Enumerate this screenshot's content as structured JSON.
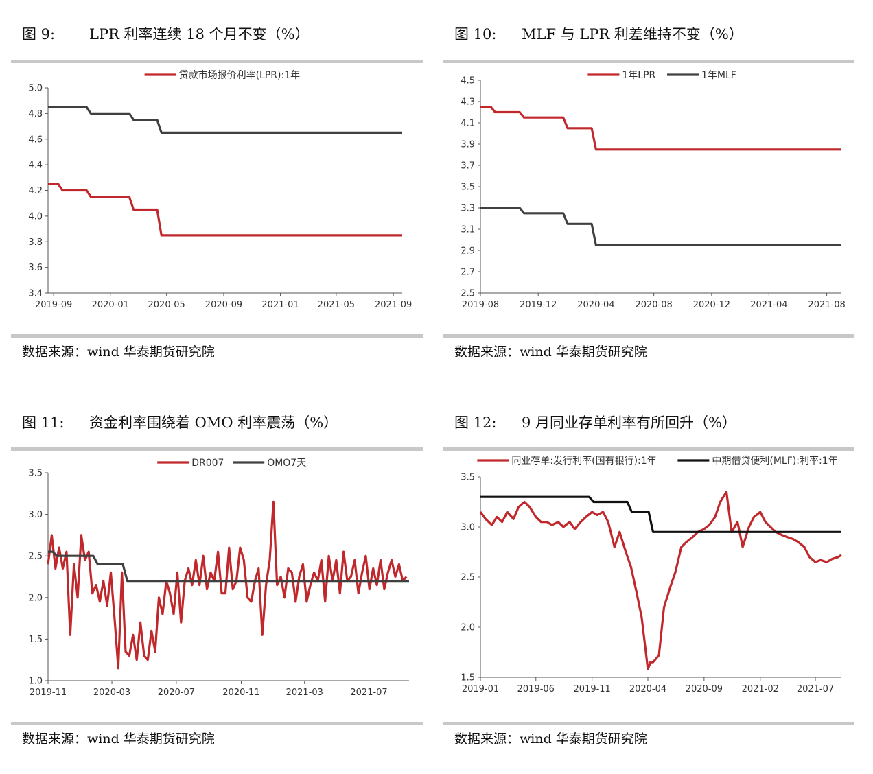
{
  "panels": [
    {
      "fig_num": "图 9:",
      "title": "LPR 利率连续 18 个月不变（%）",
      "source": "数据来源：wind  华泰期货研究院"
    },
    {
      "fig_num": "图 10:",
      "title": "MLF 与 LPR 利差维持不变（%）",
      "source": "数据来源：wind  华泰期货研究院"
    },
    {
      "fig_num": "图 11:",
      "title": "资金利率围绕着 OMO 利率震荡（%）",
      "source": "数据来源：wind  华泰期货研究院"
    },
    {
      "fig_num": "图 12:",
      "title": "9 月同业存单利率有所回升（%）",
      "source": "数据来源：wind  华泰期货研究院"
    }
  ],
  "chart_data": [
    {
      "type": "line",
      "title": "",
      "ylim": [
        3.4,
        5.0
      ],
      "yticks": [
        "3.4",
        "3.6",
        "3.8",
        "4.0",
        "4.2",
        "4.4",
        "4.6",
        "4.8",
        "5.0"
      ],
      "ytick_values": [
        3.4,
        3.6,
        3.8,
        4.0,
        4.2,
        4.4,
        4.6,
        4.8,
        5.0
      ],
      "xlim": [
        "2019-08-20",
        "2021-09-20"
      ],
      "xticks": [
        "2019-09",
        "2020-01",
        "2020-05",
        "2020-09",
        "2021-01",
        "2021-05",
        "2021-09"
      ],
      "xtick_dates": [
        "2019-09-01",
        "2020-01-01",
        "2020-05-01",
        "2020-09-01",
        "2021-01-01",
        "2021-05-01",
        "2021-09-01"
      ],
      "legend_position": "top-center",
      "series": [
        {
          "name": "贷款市场报价利率(LPR):1年",
          "color": "#c0282b",
          "step": true,
          "x": [
            "2019-08-20",
            "2019-09-20",
            "2019-10-21",
            "2019-11-20",
            "2019-12-20",
            "2020-01-20",
            "2020-02-20",
            "2020-03-20",
            "2020-04-20",
            "2021-09-20"
          ],
          "y": [
            4.25,
            4.2,
            4.2,
            4.15,
            4.15,
            4.15,
            4.05,
            4.05,
            3.85,
            3.85
          ]
        },
        {
          "name": "",
          "color": "#404040",
          "step": true,
          "x": [
            "2019-08-20",
            "2019-09-20",
            "2019-10-21",
            "2019-11-20",
            "2019-12-20",
            "2020-01-20",
            "2020-02-20",
            "2020-03-20",
            "2020-04-20",
            "2021-09-20"
          ],
          "y": [
            4.85,
            4.85,
            4.85,
            4.8,
            4.8,
            4.8,
            4.75,
            4.75,
            4.65,
            4.65
          ]
        }
      ]
    },
    {
      "type": "line",
      "title": "",
      "ylim": [
        2.5,
        4.5
      ],
      "yticks": [
        "2.5",
        "2.7",
        "2.9",
        "3.1",
        "3.3",
        "3.5",
        "3.7",
        "3.9",
        "4.1",
        "4.3",
        "4.5"
      ],
      "ytick_values": [
        2.5,
        2.7,
        2.9,
        3.1,
        3.3,
        3.5,
        3.7,
        3.9,
        4.1,
        4.3,
        4.5
      ],
      "xlim": [
        "2019-08-01",
        "2021-09-01"
      ],
      "xticks": [
        "2019-08",
        "2019-12",
        "2020-04",
        "2020-08",
        "2020-12",
        "2021-04",
        "2021-08"
      ],
      "xtick_dates": [
        "2019-08-01",
        "2019-12-01",
        "2020-04-01",
        "2020-08-01",
        "2020-12-01",
        "2021-04-01",
        "2021-08-01"
      ],
      "legend_position": "top-center",
      "series": [
        {
          "name": "1年LPR",
          "color": "#c0282b",
          "step": true,
          "x": [
            "2019-08-01",
            "2019-09-01",
            "2019-10-01",
            "2019-11-01",
            "2019-12-01",
            "2020-01-01",
            "2020-02-01",
            "2020-03-01",
            "2020-04-01",
            "2021-09-01"
          ],
          "y": [
            4.25,
            4.2,
            4.2,
            4.15,
            4.15,
            4.15,
            4.05,
            4.05,
            3.85,
            3.85
          ]
        },
        {
          "name": "1年MLF",
          "color": "#404040",
          "step": true,
          "x": [
            "2019-08-01",
            "2019-09-01",
            "2019-10-01",
            "2019-11-01",
            "2019-12-01",
            "2020-01-01",
            "2020-02-01",
            "2020-03-01",
            "2020-04-01",
            "2021-09-01"
          ],
          "y": [
            3.3,
            3.3,
            3.3,
            3.25,
            3.25,
            3.25,
            3.15,
            3.15,
            2.95,
            2.95
          ]
        }
      ]
    },
    {
      "type": "line",
      "title": "",
      "ylim": [
        1.0,
        3.5
      ],
      "yticks": [
        "1.0",
        "1.5",
        "2.0",
        "2.5",
        "3.0",
        "3.5"
      ],
      "ytick_values": [
        1.0,
        1.5,
        2.0,
        2.5,
        3.0,
        3.5
      ],
      "xlim": [
        "2019-11-01",
        "2021-09-15"
      ],
      "xticks": [
        "2019-11",
        "2020-03",
        "2020-07",
        "2020-11",
        "2021-03",
        "2021-07"
      ],
      "xtick_dates": [
        "2019-11-01",
        "2020-03-01",
        "2020-07-01",
        "2020-11-01",
        "2021-03-01",
        "2021-07-01"
      ],
      "legend_position": "top-center",
      "series": [
        {
          "name": "DR007",
          "color": "#c0282b",
          "step": false,
          "x": [
            "2019-11-01",
            "2019-11-08",
            "2019-11-15",
            "2019-11-22",
            "2019-11-29",
            "2019-12-06",
            "2019-12-13",
            "2019-12-20",
            "2019-12-27",
            "2020-01-03",
            "2020-01-10",
            "2020-01-17",
            "2020-01-24",
            "2020-01-31",
            "2020-02-07",
            "2020-02-14",
            "2020-02-21",
            "2020-02-28",
            "2020-03-06",
            "2020-03-13",
            "2020-03-20",
            "2020-03-27",
            "2020-04-03",
            "2020-04-10",
            "2020-04-17",
            "2020-04-24",
            "2020-05-01",
            "2020-05-08",
            "2020-05-15",
            "2020-05-22",
            "2020-05-29",
            "2020-06-05",
            "2020-06-12",
            "2020-06-19",
            "2020-06-26",
            "2020-07-03",
            "2020-07-10",
            "2020-07-17",
            "2020-07-24",
            "2020-07-31",
            "2020-08-07",
            "2020-08-14",
            "2020-08-21",
            "2020-08-28",
            "2020-09-04",
            "2020-09-11",
            "2020-09-18",
            "2020-09-25",
            "2020-10-02",
            "2020-10-09",
            "2020-10-16",
            "2020-10-23",
            "2020-10-30",
            "2020-11-06",
            "2020-11-13",
            "2020-11-20",
            "2020-11-27",
            "2020-12-04",
            "2020-12-11",
            "2020-12-18",
            "2020-12-25",
            "2021-01-01",
            "2021-01-08",
            "2021-01-15",
            "2021-01-22",
            "2021-01-29",
            "2021-02-05",
            "2021-02-12",
            "2021-02-19",
            "2021-02-26",
            "2021-03-05",
            "2021-03-12",
            "2021-03-19",
            "2021-03-26",
            "2021-04-02",
            "2021-04-09",
            "2021-04-16",
            "2021-04-23",
            "2021-04-30",
            "2021-05-07",
            "2021-05-14",
            "2021-05-21",
            "2021-05-28",
            "2021-06-04",
            "2021-06-11",
            "2021-06-18",
            "2021-06-25",
            "2021-07-02",
            "2021-07-09",
            "2021-07-16",
            "2021-07-23",
            "2021-07-30",
            "2021-08-06",
            "2021-08-13",
            "2021-08-20",
            "2021-08-27",
            "2021-09-03",
            "2021-09-10"
          ],
          "y": [
            2.4,
            2.75,
            2.35,
            2.6,
            2.35,
            2.55,
            1.55,
            2.4,
            2.0,
            2.75,
            2.45,
            2.55,
            2.05,
            2.15,
            1.95,
            2.2,
            1.9,
            2.3,
            1.75,
            1.15,
            2.3,
            1.35,
            1.3,
            1.55,
            1.25,
            1.7,
            1.3,
            1.25,
            1.6,
            1.35,
            2.0,
            1.8,
            2.2,
            2.05,
            1.8,
            2.3,
            1.7,
            2.2,
            2.35,
            2.15,
            2.45,
            2.15,
            2.5,
            2.1,
            2.3,
            2.2,
            2.55,
            2.05,
            2.05,
            2.6,
            2.1,
            2.2,
            2.6,
            2.45,
            2.0,
            1.95,
            2.2,
            2.35,
            1.55,
            2.15,
            2.45,
            3.15,
            2.15,
            2.25,
            2.0,
            2.35,
            2.3,
            1.95,
            2.25,
            2.4,
            1.95,
            2.15,
            2.3,
            2.2,
            2.45,
            1.95,
            2.5,
            2.2,
            2.45,
            2.05,
            2.55,
            2.2,
            2.25,
            2.45,
            2.05,
            2.3,
            2.5,
            2.1,
            2.35,
            2.15,
            2.45,
            2.1,
            2.3,
            2.45,
            2.25,
            2.4,
            2.2,
            2.25
          ]
        },
        {
          "name": "OMO7天",
          "color": "#404040",
          "step": true,
          "x": [
            "2019-11-01",
            "2019-11-18",
            "2020-02-03",
            "2020-03-30",
            "2021-09-15"
          ],
          "y": [
            2.55,
            2.5,
            2.4,
            2.2,
            2.2
          ]
        }
      ]
    },
    {
      "type": "line",
      "title": "",
      "ylim": [
        1.5,
        3.5
      ],
      "yticks": [
        "1.5",
        "2.0",
        "2.5",
        "3.0",
        "3.5"
      ],
      "ytick_values": [
        1.5,
        2.0,
        2.5,
        3.0,
        3.5
      ],
      "xlim": [
        "2019-01-01",
        "2021-09-10"
      ],
      "xticks": [
        "2019-01",
        "2019-06",
        "2019-11",
        "2020-04",
        "2020-09",
        "2021-02",
        "2021-07"
      ],
      "xtick_dates": [
        "2019-01-01",
        "2019-06-01",
        "2019-11-01",
        "2020-04-01",
        "2020-09-01",
        "2021-02-01",
        "2021-07-01"
      ],
      "legend_position": "top-center",
      "series": [
        {
          "name": "同业存单:发行利率(国有银行):1年",
          "color": "#c0282b",
          "step": false,
          "x": [
            "2019-01-01",
            "2019-01-15",
            "2019-02-01",
            "2019-02-15",
            "2019-03-01",
            "2019-03-15",
            "2019-04-01",
            "2019-04-15",
            "2019-05-01",
            "2019-05-15",
            "2019-06-01",
            "2019-06-15",
            "2019-07-01",
            "2019-07-15",
            "2019-08-01",
            "2019-08-15",
            "2019-09-01",
            "2019-09-15",
            "2019-10-01",
            "2019-10-15",
            "2019-11-01",
            "2019-11-15",
            "2019-12-01",
            "2019-12-15",
            "2020-01-01",
            "2020-01-15",
            "2020-02-01",
            "2020-02-15",
            "2020-03-01",
            "2020-03-15",
            "2020-04-01",
            "2020-04-08",
            "2020-04-15",
            "2020-05-01",
            "2020-05-15",
            "2020-06-01",
            "2020-06-15",
            "2020-07-01",
            "2020-07-15",
            "2020-08-01",
            "2020-08-15",
            "2020-09-01",
            "2020-09-15",
            "2020-10-01",
            "2020-10-15",
            "2020-11-01",
            "2020-11-15",
            "2020-12-01",
            "2020-12-15",
            "2021-01-01",
            "2021-01-15",
            "2021-02-01",
            "2021-02-15",
            "2021-03-01",
            "2021-03-15",
            "2021-04-01",
            "2021-04-15",
            "2021-05-01",
            "2021-05-15",
            "2021-06-01",
            "2021-06-15",
            "2021-07-01",
            "2021-07-15",
            "2021-08-01",
            "2021-08-15",
            "2021-09-01",
            "2021-09-10"
          ],
          "y": [
            3.15,
            3.08,
            3.02,
            3.1,
            3.05,
            3.15,
            3.08,
            3.2,
            3.25,
            3.2,
            3.1,
            3.05,
            3.05,
            3.02,
            3.05,
            3.0,
            3.05,
            2.98,
            3.05,
            3.1,
            3.15,
            3.12,
            3.15,
            3.05,
            2.8,
            2.95,
            2.75,
            2.6,
            2.35,
            2.1,
            1.58,
            1.65,
            1.65,
            1.72,
            2.2,
            2.4,
            2.55,
            2.8,
            2.85,
            2.9,
            2.95,
            2.98,
            3.02,
            3.1,
            3.25,
            3.35,
            2.95,
            3.05,
            2.8,
            3.0,
            3.1,
            3.15,
            3.05,
            3.0,
            2.95,
            2.92,
            2.9,
            2.88,
            2.85,
            2.8,
            2.7,
            2.65,
            2.67,
            2.65,
            2.68,
            2.7,
            2.72
          ]
        },
        {
          "name": "中期借贷便利(MLF):利率:1年",
          "color": "#111111",
          "step": true,
          "x": [
            "2019-01-01",
            "2019-11-05",
            "2020-02-17",
            "2020-04-15",
            "2021-09-10"
          ],
          "y": [
            3.3,
            3.25,
            3.15,
            2.95,
            2.95
          ]
        }
      ]
    }
  ]
}
